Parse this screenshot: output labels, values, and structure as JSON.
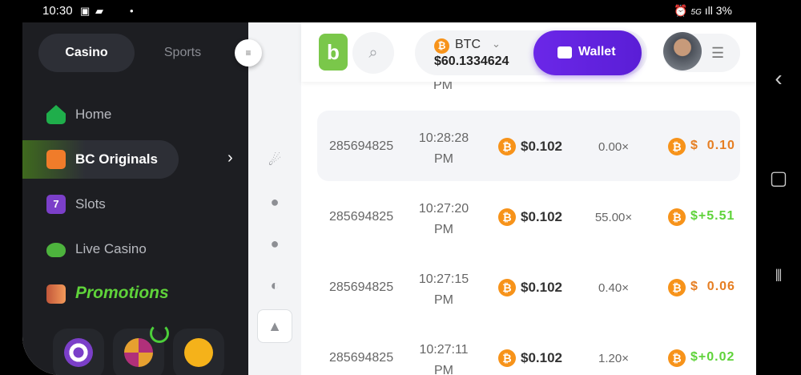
{
  "status_bar": {
    "time": "10:30",
    "icons": [
      "gallery-icon",
      "message-icon",
      "dot-icon"
    ],
    "right": "3%",
    "network": "5G"
  },
  "sidebar": {
    "tabs": [
      {
        "label": "Casino",
        "active": true
      },
      {
        "label": "Sports",
        "active": false
      }
    ],
    "items": [
      {
        "label": "Home",
        "icon": "home-icon"
      },
      {
        "label": "BC Originals",
        "icon": "dice-icon",
        "active": true
      },
      {
        "label": "Slots",
        "icon": "slot-7-icon"
      },
      {
        "label": "Live Casino",
        "icon": "dealer-icon"
      },
      {
        "label": "Promotions",
        "icon": "tags-icon"
      }
    ],
    "promo_tiles": [
      "target-icon",
      "wheel-icon",
      "piggy-bank-icon"
    ]
  },
  "header": {
    "currency": "BTC",
    "balance": "$60.1334624",
    "wallet_label": "Wallet"
  },
  "colors": {
    "accent": "#6b27e8",
    "win": "#5fd33a",
    "loss": "#e67e22",
    "btc": "#f7931a",
    "sidebar": "#1d1e22"
  },
  "table": {
    "partial_top_time": "PM",
    "rows": [
      {
        "id": "285694825",
        "time": "10:28:28",
        "ampm": "PM",
        "bet": "$0.102",
        "multiplier": "0.00×",
        "profit": "$  0.10",
        "win": false
      },
      {
        "id": "285694825",
        "time": "10:27:20",
        "ampm": "PM",
        "bet": "$0.102",
        "multiplier": "55.00×",
        "profit": "$+5.51",
        "win": true
      },
      {
        "id": "285694825",
        "time": "10:27:15",
        "ampm": "PM",
        "bet": "$0.102",
        "multiplier": "0.40×",
        "profit": "$  0.06",
        "win": false
      },
      {
        "id": "285694825",
        "time": "10:27:11",
        "ampm": "PM",
        "bet": "$0.102",
        "multiplier": "1.20×",
        "profit": "$+0.02",
        "win": true
      }
    ]
  }
}
